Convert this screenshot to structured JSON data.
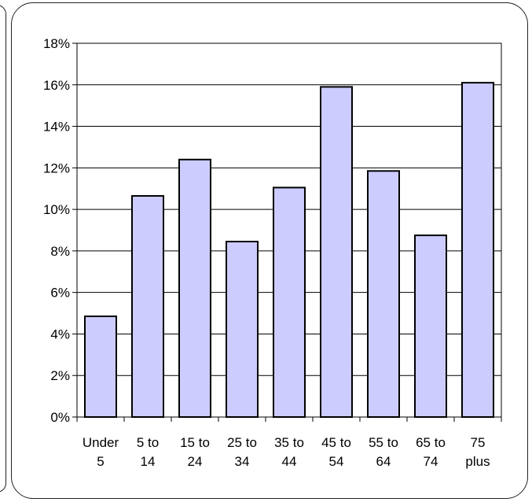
{
  "chart_data": {
    "type": "bar",
    "title": "",
    "xlabel": "",
    "ylabel": "",
    "categories": [
      [
        "Under",
        "5"
      ],
      [
        "5 to",
        "14"
      ],
      [
        "15 to",
        "24"
      ],
      [
        "25 to",
        "34"
      ],
      [
        "35 to",
        "44"
      ],
      [
        "45 to",
        "54"
      ],
      [
        "55 to",
        "64"
      ],
      [
        "65 to",
        "74"
      ],
      [
        "75",
        "plus"
      ]
    ],
    "values": [
      4.85,
      10.65,
      12.4,
      8.45,
      11.05,
      15.9,
      11.85,
      8.75,
      16.1
    ],
    "ylim": [
      0,
      18
    ],
    "y_ticks": [
      "0%",
      "2%",
      "4%",
      "6%",
      "8%",
      "10%",
      "12%",
      "14%",
      "16%",
      "18%"
    ],
    "grid": true,
    "legend": "none",
    "colors": {
      "bar_fill": "#ccccff",
      "bar_stroke": "#000000",
      "grid": "#000000",
      "axis": "#000000"
    }
  }
}
